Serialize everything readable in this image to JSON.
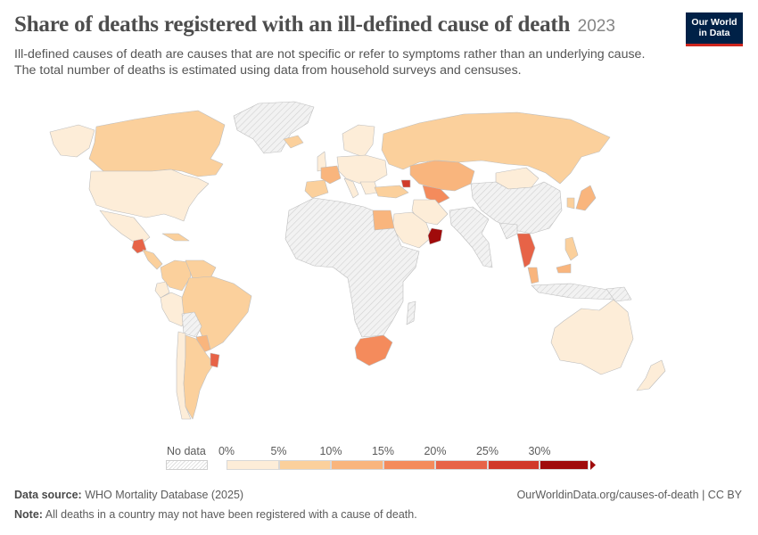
{
  "header": {
    "title": "Share of deaths registered with an ill-defined cause of death",
    "year": "2023",
    "subtitle_line1": "Ill-defined causes of death are causes that are not specific or refer to symptoms rather than an underlying cause.",
    "subtitle_line2": "The total number of deaths is estimated using data from household surveys and censuses."
  },
  "logo": {
    "line1": "Our World",
    "line2": "in Data",
    "bg": "#002147",
    "accent": "#ce261e"
  },
  "legend": {
    "no_data_label": "No data",
    "ticks": [
      "0%",
      "5%",
      "10%",
      "15%",
      "20%",
      "25%",
      "30%"
    ],
    "colors": [
      "#fdedd8",
      "#fbd09c",
      "#f9b57d",
      "#f48b5c",
      "#e76347",
      "#d13a2a",
      "#a00b0b"
    ]
  },
  "footer": {
    "source_label": "Data source:",
    "source_value": "WHO Mortality Database (2025)",
    "url": "OurWorldinData.org/causes-of-death | CC BY",
    "note_label": "Note:",
    "note_value": "All deaths in a country may not have been registered with a cause of death."
  },
  "map_data": {
    "nodata_color": "#e8e8e8",
    "regions": [
      {
        "name": "Canada",
        "bin": 1
      },
      {
        "name": "United States",
        "bin": 0
      },
      {
        "name": "Mexico",
        "bin": 0
      },
      {
        "name": "Guatemala",
        "bin": 4
      },
      {
        "name": "Central America",
        "bin": 1
      },
      {
        "name": "Colombia",
        "bin": 1
      },
      {
        "name": "Venezuela",
        "bin": 1
      },
      {
        "name": "Ecuador",
        "bin": 0
      },
      {
        "name": "Peru",
        "bin": 0
      },
      {
        "name": "Brazil",
        "bin": 1
      },
      {
        "name": "Bolivia",
        "bin": null
      },
      {
        "name": "Paraguay",
        "bin": 2
      },
      {
        "name": "Uruguay",
        "bin": 4
      },
      {
        "name": "Argentina",
        "bin": 1
      },
      {
        "name": "Chile",
        "bin": 0
      },
      {
        "name": "Greenland",
        "bin": null
      },
      {
        "name": "Iceland",
        "bin": 1
      },
      {
        "name": "Europe",
        "bin": 0
      },
      {
        "name": "Spain",
        "bin": 1
      },
      {
        "name": "France",
        "bin": 2
      },
      {
        "name": "Russia",
        "bin": 1
      },
      {
        "name": "Kazakhstan",
        "bin": 2
      },
      {
        "name": "Turkey",
        "bin": 1
      },
      {
        "name": "Uzbekistan",
        "bin": 3
      },
      {
        "name": "Georgia",
        "bin": 5
      },
      {
        "name": "Egypt",
        "bin": 2
      },
      {
        "name": "Saudi Arabia",
        "bin": 0
      },
      {
        "name": "Oman",
        "bin": 6
      },
      {
        "name": "Iran",
        "bin": 0
      },
      {
        "name": "Mongolia",
        "bin": 0
      },
      {
        "name": "China",
        "bin": null
      },
      {
        "name": "India",
        "bin": null
      },
      {
        "name": "Thailand",
        "bin": 4
      },
      {
        "name": "Malaysia",
        "bin": 2
      },
      {
        "name": "Philippines",
        "bin": 1
      },
      {
        "name": "Japan",
        "bin": 2
      },
      {
        "name": "South Korea",
        "bin": 1
      },
      {
        "name": "South Africa",
        "bin": 3
      },
      {
        "name": "Africa",
        "bin": null
      },
      {
        "name": "Australia",
        "bin": 0
      },
      {
        "name": "New Zealand",
        "bin": 0
      }
    ]
  }
}
